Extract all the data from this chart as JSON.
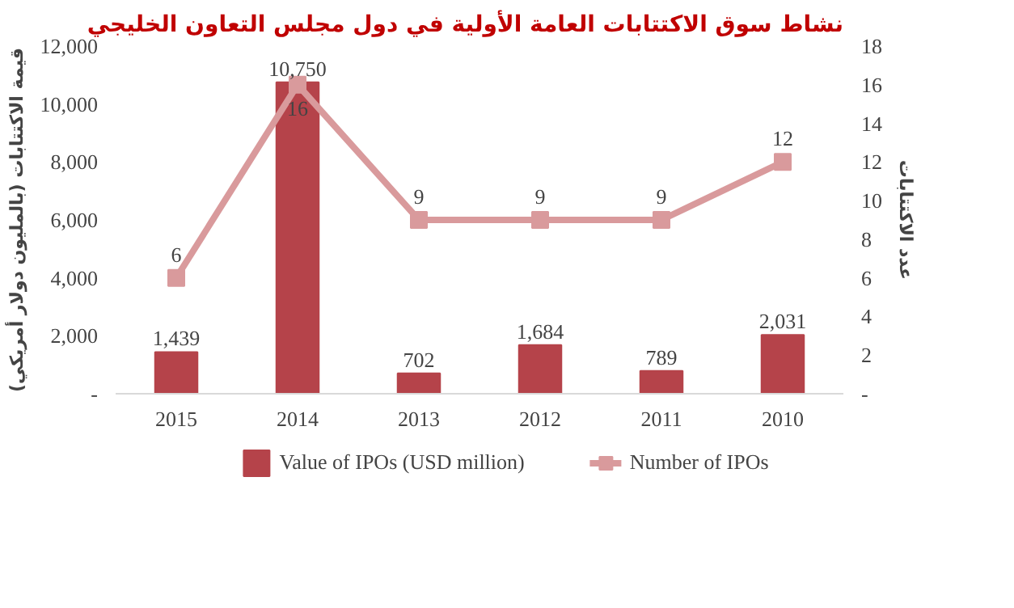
{
  "chart_data": {
    "type": "bar",
    "title": "نشاط سوق الاكتتابات العامة الأولية في دول مجلس التعاون الخليجي",
    "ylabel": "قيمة الاكتتابات (بالمليون دولار أمريكي)",
    "y2label": "عدد الاكتتابات",
    "categories": [
      "2015",
      "2014",
      "2013",
      "2012",
      "2011",
      "2010"
    ],
    "series": [
      {
        "name": "Value of IPOs (USD million)",
        "color": "#b5434a",
        "values": [
          1439,
          10750,
          702,
          1684,
          789,
          2031
        ],
        "value_labels": [
          "1,439",
          "10,750",
          "702",
          "1,684",
          "789",
          "2,031"
        ]
      },
      {
        "name": "Number of IPOs",
        "type": "line",
        "axis": "y2",
        "color": "#d99a9c",
        "marker": "square",
        "values": [
          6,
          16,
          9,
          9,
          9,
          12
        ]
      }
    ],
    "ylim": [
      0,
      12000
    ],
    "yticks": [
      {
        "value": 0,
        "label": "-"
      },
      {
        "value": 2000,
        "label": "2,000"
      },
      {
        "value": 4000,
        "label": "4,000"
      },
      {
        "value": 6000,
        "label": "6,000"
      },
      {
        "value": 8000,
        "label": "8,000"
      },
      {
        "value": 10000,
        "label": "10,000"
      },
      {
        "value": 12000,
        "label": "12,000"
      }
    ],
    "y2lim": [
      0,
      18
    ],
    "y2ticks": [
      {
        "value": 0,
        "label": "-"
      },
      2,
      4,
      6,
      8,
      10,
      12,
      14,
      16,
      18
    ],
    "data_labels": true,
    "grid": false,
    "legend": "bottom"
  }
}
